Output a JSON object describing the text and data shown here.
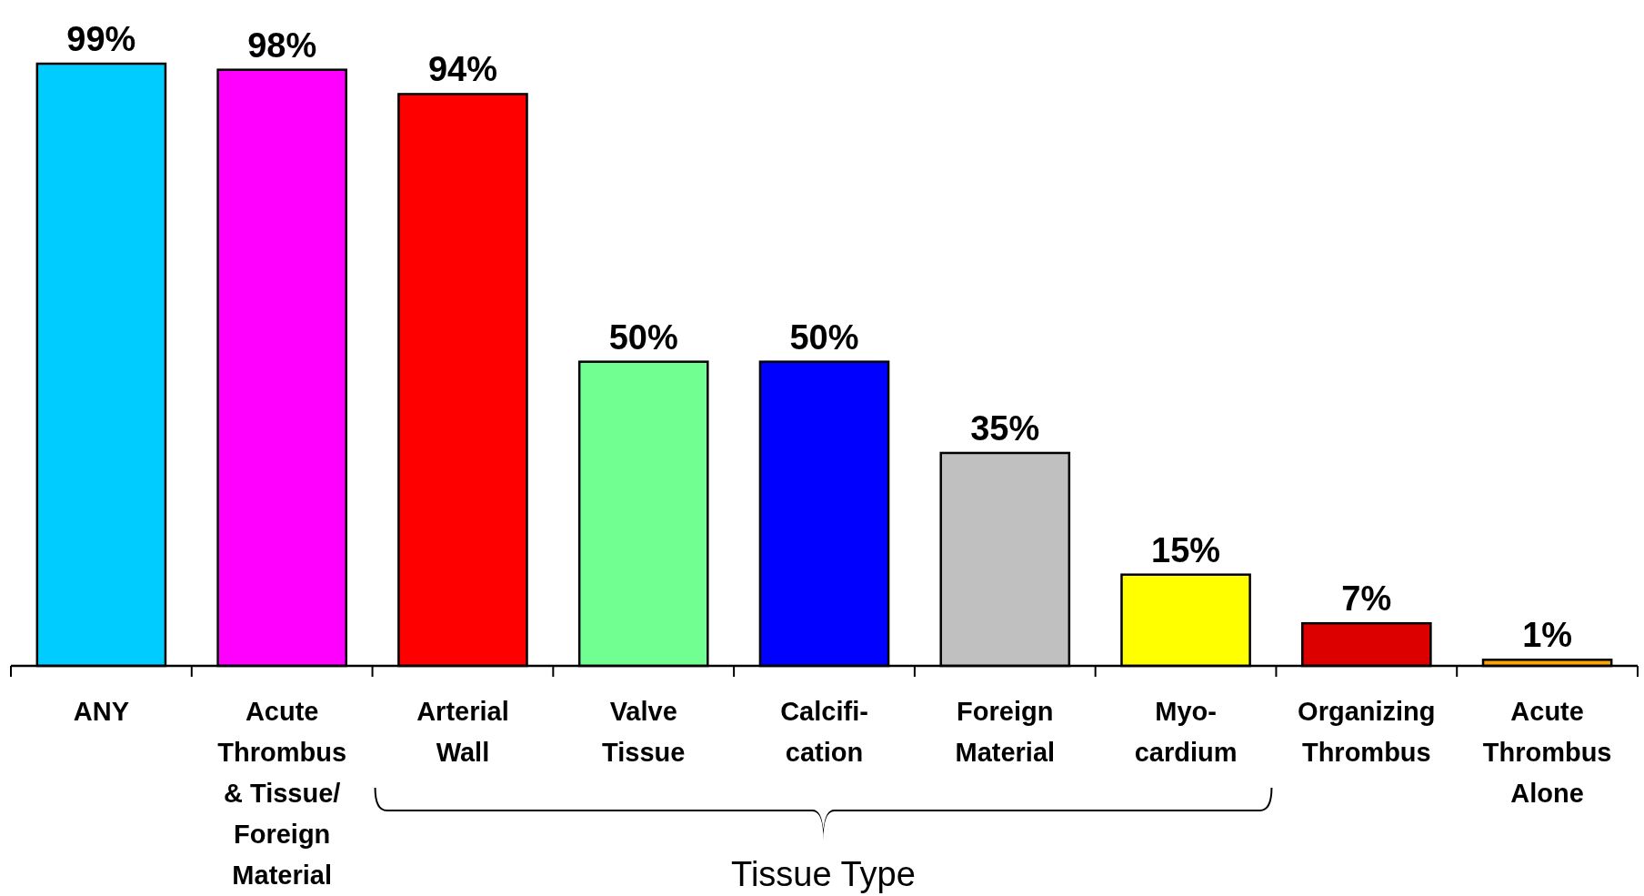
{
  "chart_data": {
    "type": "bar",
    "categories": [
      "ANY",
      "Acute\nThrombus\n& Tissue/\nForeign\nMaterial",
      "Arterial\nWall",
      "Valve\nTissue",
      "Calcifi-\ncation",
      "Foreign\nMaterial",
      "Myo-\ncardium",
      "Organizing\nThrombus",
      "Acute\nThrombus\nAlone"
    ],
    "values": [
      99,
      98,
      94,
      50,
      50,
      35,
      15,
      7,
      1
    ],
    "colors": [
      "#00ccff",
      "#ff00ff",
      "#ff0000",
      "#70ff90",
      "#0000ff",
      "#c0c0c0",
      "#ffff00",
      "#dd0000",
      "#ffa500"
    ],
    "value_labels": [
      "99%",
      "98%",
      "94%",
      "50%",
      "50%",
      "35%",
      "15%",
      "7%",
      "1%"
    ],
    "annotations": [
      "Tissue Type"
    ]
  }
}
